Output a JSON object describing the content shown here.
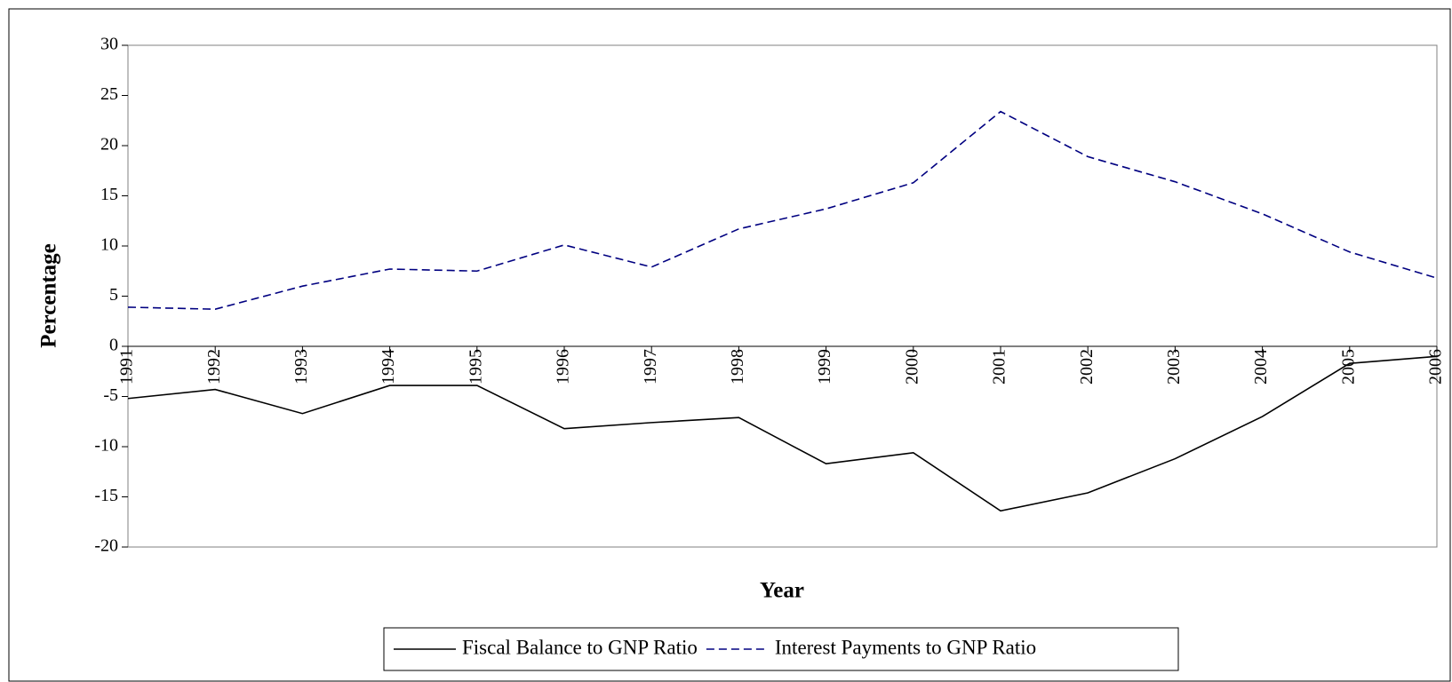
{
  "chart_data": {
    "type": "line",
    "x_label": "Year",
    "y_label": "Percentage",
    "categories": [
      "1991",
      "1992",
      "1993",
      "1994",
      "1995",
      "1996",
      "1997",
      "1998",
      "1999",
      "2000",
      "2001",
      "2002",
      "2003",
      "2004",
      "2005",
      "2006"
    ],
    "series": [
      {
        "name": "Fiscal Balance to GNP Ratio",
        "color": "#000000",
        "line_style": "solid",
        "values": [
          -5.2,
          -4.3,
          -6.7,
          -3.9,
          -3.9,
          -8.2,
          -7.6,
          -7.1,
          -11.7,
          -10.6,
          -16.4,
          -14.6,
          -11.2,
          -7.0,
          -1.7,
          -1.0
        ]
      },
      {
        "name": "Interest Payments to GNP Ratio",
        "color": "#000080",
        "line_style": "dashed",
        "values": [
          3.9,
          3.7,
          6.0,
          7.7,
          7.5,
          10.1,
          7.9,
          11.7,
          13.7,
          16.3,
          23.4,
          18.9,
          16.4,
          13.2,
          9.4,
          6.8
        ]
      }
    ],
    "ylim": [
      -20,
      30
    ],
    "yticks": [
      -20,
      -15,
      -10,
      -5,
      0,
      5,
      10,
      15,
      20,
      25,
      30
    ],
    "grid": false,
    "legend": "bottom"
  }
}
